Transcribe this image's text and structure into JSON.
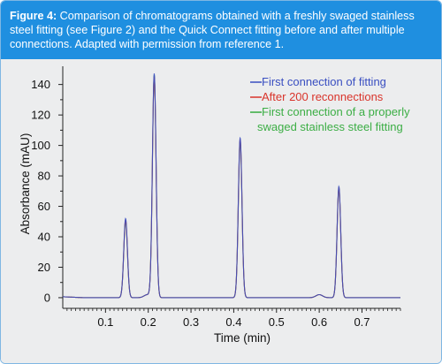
{
  "caption": {
    "label": "Figure 4:",
    "text": " Comparison of chromatograms obtained with a freshly swaged stainless steel fitting (see Figure 2) and the Quick Connect fitting before and after multiple connections. Adapted with permission from reference 1."
  },
  "chart_data": {
    "type": "line",
    "xlabel": "Time (min)",
    "ylabel": "Absorbance (mAU)",
    "xlim": [
      0.0,
      0.79
    ],
    "ylim": [
      -7,
      152
    ],
    "x_ticks": [
      0.1,
      0.2,
      0.3,
      0.4,
      0.5,
      0.6,
      0.7
    ],
    "y_ticks": [
      0,
      20,
      40,
      60,
      80,
      100,
      120,
      140
    ],
    "grid": false,
    "legend_position": "top-right",
    "series": [
      {
        "name": "First connection of fitting",
        "color": "#3a4fc1",
        "peaks": [
          {
            "time": 0.147,
            "height": 52
          },
          {
            "time": 0.198,
            "height": 2
          },
          {
            "time": 0.214,
            "height": 147
          },
          {
            "time": 0.415,
            "height": 105
          },
          {
            "time": 0.6,
            "height": 2
          },
          {
            "time": 0.646,
            "height": 73
          }
        ]
      },
      {
        "name": "After 200 reconnections",
        "color": "#d9342b",
        "peaks": [
          {
            "time": 0.147,
            "height": 51
          },
          {
            "time": 0.198,
            "height": 2
          },
          {
            "time": 0.214,
            "height": 145
          },
          {
            "time": 0.415,
            "height": 104
          },
          {
            "time": 0.6,
            "height": 2
          },
          {
            "time": 0.646,
            "height": 72
          }
        ]
      },
      {
        "name": "First connection of a properly swaged stainless steel fitting",
        "legend_lines": [
          "First connection of a properly",
          "swaged stainless steel fitting"
        ],
        "color": "#3cae45",
        "peaks": [
          {
            "time": 0.147,
            "height": 50
          },
          {
            "time": 0.198,
            "height": 2
          },
          {
            "time": 0.214,
            "height": 146
          },
          {
            "time": 0.415,
            "height": 103
          },
          {
            "time": 0.6,
            "height": 2
          },
          {
            "time": 0.646,
            "height": 72
          }
        ]
      }
    ]
  }
}
